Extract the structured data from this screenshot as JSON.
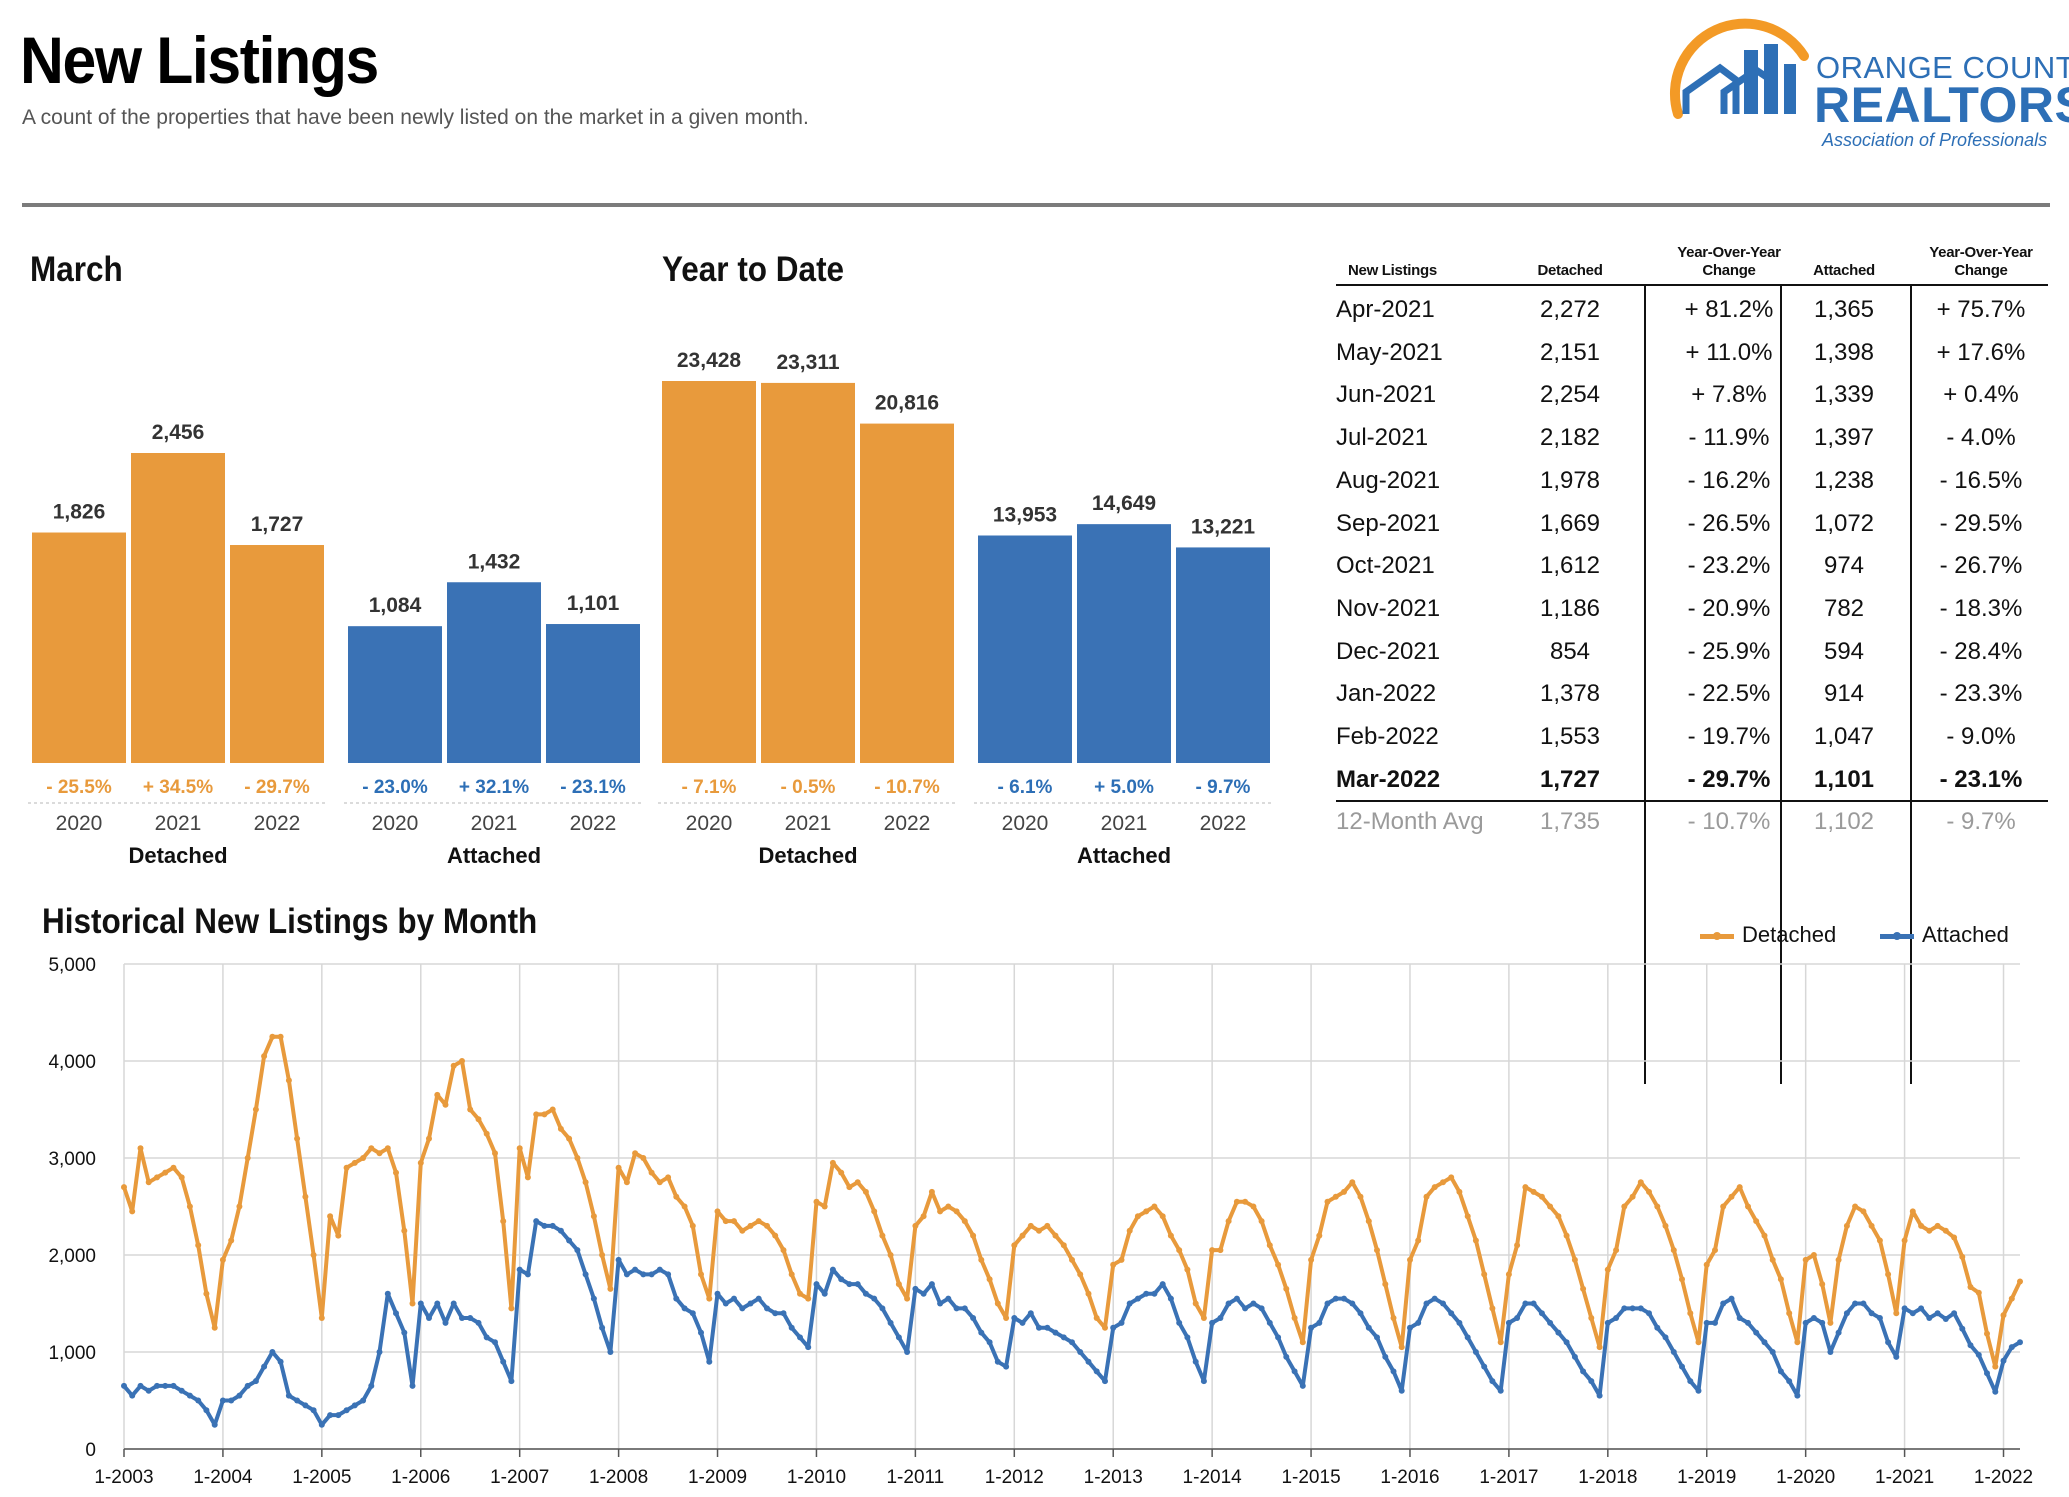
{
  "header": {
    "title": "New Listings",
    "subtitle": "A count of the properties that have been newly listed on the market in a given month."
  },
  "logo": {
    "top": "ORANGE COUNTY",
    "big": "REALTORS",
    "reg": "®",
    "sub": "Association of Professionals",
    "colors": {
      "orange": "#f39a26",
      "blue": "#2d6fb6"
    }
  },
  "colors": {
    "detached": "#e89a3c",
    "attached": "#3a72b5",
    "pct_detached": "#e89a3c",
    "pct_attached": "#2d6fb6",
    "grid": "#d7d7d7"
  },
  "chart_data": [
    {
      "type": "bar",
      "title": "March",
      "categories": [
        "2020",
        "2021",
        "2022"
      ],
      "series": [
        {
          "name": "Detached",
          "values": [
            1826,
            2456,
            1727
          ],
          "labels": [
            "1,826",
            "2,456",
            "1,727"
          ],
          "changes": [
            "- 25.5%",
            "+ 34.5%",
            "- 29.7%"
          ]
        },
        {
          "name": "Attached",
          "values": [
            1084,
            1432,
            1101
          ],
          "labels": [
            "1,084",
            "1,432",
            "1,101"
          ],
          "changes": [
            "- 23.0%",
            "+ 32.1%",
            "- 23.1%"
          ]
        }
      ]
    },
    {
      "type": "bar",
      "title": "Year to Date",
      "categories": [
        "2020",
        "2021",
        "2022"
      ],
      "series": [
        {
          "name": "Detached",
          "values": [
            23428,
            23311,
            20816
          ],
          "labels": [
            "23,428",
            "23,311",
            "20,816"
          ],
          "changes": [
            "- 7.1%",
            "- 0.5%",
            "- 10.7%"
          ]
        },
        {
          "name": "Attached",
          "values": [
            13953,
            14649,
            13221
          ],
          "labels": [
            "13,953",
            "14,649",
            "13,221"
          ],
          "changes": [
            "- 6.1%",
            "+ 5.0%",
            "- 9.7%"
          ]
        }
      ]
    },
    {
      "type": "table",
      "columns": [
        "New Listings",
        "Detached",
        "Year-Over-Year Change",
        "Attached",
        "Year-Over-Year Change"
      ],
      "rows": [
        [
          "Apr-2021",
          "2,272",
          "+ 81.2%",
          "1,365",
          "+ 75.7%"
        ],
        [
          "May-2021",
          "2,151",
          "+ 11.0%",
          "1,398",
          "+ 17.6%"
        ],
        [
          "Jun-2021",
          "2,254",
          "+ 7.8%",
          "1,339",
          "+ 0.4%"
        ],
        [
          "Jul-2021",
          "2,182",
          "- 11.9%",
          "1,397",
          "- 4.0%"
        ],
        [
          "Aug-2021",
          "1,978",
          "- 16.2%",
          "1,238",
          "- 16.5%"
        ],
        [
          "Sep-2021",
          "1,669",
          "- 26.5%",
          "1,072",
          "- 29.5%"
        ],
        [
          "Oct-2021",
          "1,612",
          "- 23.2%",
          "974",
          "- 26.7%"
        ],
        [
          "Nov-2021",
          "1,186",
          "- 20.9%",
          "782",
          "- 18.3%"
        ],
        [
          "Dec-2021",
          "854",
          "- 25.9%",
          "594",
          "- 28.4%"
        ],
        [
          "Jan-2022",
          "1,378",
          "- 22.5%",
          "914",
          "- 23.3%"
        ],
        [
          "Feb-2022",
          "1,553",
          "- 19.7%",
          "1,047",
          "- 9.0%"
        ],
        [
          "Mar-2022",
          "1,727",
          "- 29.7%",
          "1,101",
          "- 23.1%"
        ]
      ],
      "footer": [
        "12-Month Avg",
        "1,735",
        "- 10.7%",
        "1,102",
        "- 9.7%"
      ]
    },
    {
      "type": "line",
      "title": "Historical New Listings by Month",
      "ylim": [
        0,
        5000
      ],
      "yticks": [
        0,
        1000,
        2000,
        3000,
        4000,
        5000
      ],
      "ytick_labels": [
        "0",
        "1,000",
        "2,000",
        "3,000",
        "4,000",
        "5,000"
      ],
      "xticks": [
        "1-2003",
        "1-2004",
        "1-2005",
        "1-2006",
        "1-2007",
        "1-2008",
        "1-2009",
        "1-2010",
        "1-2011",
        "1-2012",
        "1-2013",
        "1-2014",
        "1-2015",
        "1-2016",
        "1-2017",
        "1-2018",
        "1-2019",
        "1-2020",
        "1-2021",
        "1-2022"
      ],
      "legend": [
        "Detached",
        "Attached"
      ],
      "series": [
        {
          "name": "Detached",
          "values": [
            2700,
            2450,
            3100,
            2750,
            2800,
            2850,
            2900,
            2800,
            2500,
            2100,
            1600,
            1250,
            1950,
            2150,
            2500,
            3000,
            3500,
            4050,
            4250,
            4250,
            3800,
            3200,
            2600,
            2000,
            1350,
            2400,
            2200,
            2900,
            2950,
            3000,
            3100,
            3050,
            3100,
            2850,
            2250,
            1500,
            2950,
            3200,
            3650,
            3550,
            3950,
            4000,
            3500,
            3400,
            3250,
            3050,
            2350,
            1450,
            3100,
            2800,
            3450,
            3450,
            3500,
            3300,
            3200,
            3000,
            2750,
            2400,
            2000,
            1650,
            2900,
            2750,
            3050,
            3000,
            2850,
            2750,
            2800,
            2600,
            2500,
            2300,
            1800,
            1550,
            2450,
            2350,
            2350,
            2250,
            2300,
            2350,
            2300,
            2200,
            2050,
            1800,
            1600,
            1550,
            2550,
            2500,
            2950,
            2850,
            2700,
            2750,
            2650,
            2450,
            2200,
            2000,
            1700,
            1550,
            2300,
            2400,
            2650,
            2450,
            2500,
            2450,
            2350,
            2200,
            1950,
            1750,
            1500,
            1350,
            2100,
            2200,
            2300,
            2250,
            2300,
            2200,
            2100,
            1950,
            1800,
            1600,
            1350,
            1250,
            1900,
            1950,
            2250,
            2400,
            2450,
            2500,
            2400,
            2200,
            2050,
            1850,
            1500,
            1350,
            2050,
            2050,
            2350,
            2550,
            2550,
            2500,
            2350,
            2100,
            1900,
            1650,
            1350,
            1100,
            1950,
            2200,
            2550,
            2600,
            2650,
            2750,
            2600,
            2350,
            2050,
            1700,
            1350,
            1050,
            1950,
            2150,
            2600,
            2700,
            2750,
            2800,
            2650,
            2400,
            2150,
            1800,
            1450,
            1100,
            1800,
            2100,
            2700,
            2650,
            2600,
            2500,
            2400,
            2200,
            1950,
            1650,
            1350,
            1050,
            1850,
            2050,
            2500,
            2600,
            2750,
            2650,
            2500,
            2300,
            2050,
            1750,
            1400,
            1100,
            1900,
            2050,
            2500,
            2600,
            2700,
            2500,
            2350,
            2200,
            1950,
            1750,
            1400,
            1100,
            1950,
            2000,
            1700,
            1300,
            1950,
            2300,
            2500,
            2450,
            2300,
            2150,
            1800,
            1400,
            2150,
            2450,
            2300,
            2250,
            2300,
            2250,
            2180,
            1980,
            1670,
            1610,
            1190,
            850,
            1380,
            1550,
            1727
          ]
        },
        {
          "name": "Attached",
          "values": [
            650,
            550,
            650,
            600,
            650,
            650,
            650,
            600,
            550,
            500,
            400,
            250,
            500,
            500,
            550,
            650,
            700,
            850,
            1000,
            900,
            550,
            500,
            450,
            400,
            250,
            350,
            350,
            400,
            450,
            500,
            650,
            1000,
            1600,
            1400,
            1200,
            650,
            1500,
            1350,
            1500,
            1300,
            1500,
            1350,
            1350,
            1300,
            1150,
            1100,
            900,
            700,
            1850,
            1800,
            2350,
            2300,
            2300,
            2250,
            2150,
            2050,
            1800,
            1550,
            1250,
            1000,
            1950,
            1800,
            1850,
            1800,
            1800,
            1850,
            1800,
            1550,
            1450,
            1400,
            1200,
            900,
            1600,
            1500,
            1550,
            1450,
            1500,
            1550,
            1450,
            1400,
            1400,
            1250,
            1150,
            1050,
            1700,
            1600,
            1850,
            1750,
            1700,
            1700,
            1600,
            1550,
            1450,
            1300,
            1150,
            1000,
            1650,
            1600,
            1700,
            1500,
            1550,
            1450,
            1450,
            1350,
            1200,
            1100,
            900,
            850,
            1350,
            1300,
            1400,
            1250,
            1250,
            1200,
            1150,
            1100,
            1000,
            900,
            800,
            700,
            1250,
            1300,
            1500,
            1550,
            1600,
            1600,
            1700,
            1550,
            1300,
            1150,
            900,
            700,
            1300,
            1350,
            1500,
            1550,
            1450,
            1500,
            1450,
            1300,
            1150,
            950,
            800,
            650,
            1250,
            1300,
            1500,
            1550,
            1550,
            1500,
            1400,
            1250,
            1150,
            950,
            800,
            600,
            1250,
            1300,
            1500,
            1550,
            1500,
            1400,
            1300,
            1150,
            1000,
            850,
            700,
            600,
            1300,
            1350,
            1500,
            1500,
            1400,
            1300,
            1200,
            1100,
            950,
            800,
            700,
            550,
            1300,
            1350,
            1450,
            1450,
            1450,
            1400,
            1250,
            1150,
            1000,
            850,
            700,
            600,
            1300,
            1300,
            1500,
            1550,
            1350,
            1300,
            1200,
            1100,
            1000,
            800,
            700,
            550,
            1300,
            1350,
            1300,
            1000,
            1200,
            1400,
            1500,
            1500,
            1400,
            1350,
            1100,
            950,
            1450,
            1400,
            1450,
            1350,
            1400,
            1340,
            1400,
            1240,
            1070,
            970,
            780,
            590,
            910,
            1050,
            1101
          ]
        }
      ]
    }
  ]
}
